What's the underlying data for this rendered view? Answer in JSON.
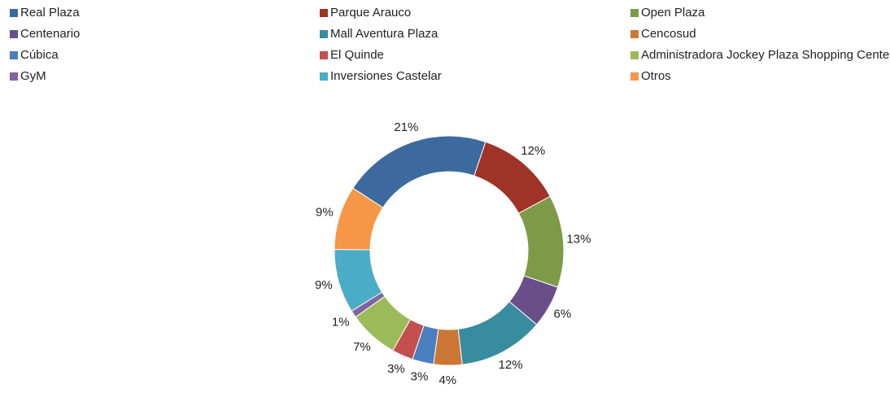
{
  "chart_data": {
    "type": "donut",
    "categories": [
      "Real Plaza",
      "Parque Arauco",
      "Open Plaza",
      "Centenario",
      "Mall Aventura Plaza",
      "Cencosud",
      "Cúbica",
      "El Quinde",
      "Administradora Jockey Plaza Shopping Center",
      "GyM",
      "Inversiones Castelar",
      "Otros"
    ],
    "values": [
      21,
      12,
      13,
      6,
      12,
      4,
      3,
      3,
      7,
      1,
      9,
      9
    ],
    "value_labels": [
      "21%",
      "12%",
      "13%",
      "6%",
      "12%",
      "4%",
      "3%",
      "3%",
      "7%",
      "1%",
      "9%",
      "9%"
    ],
    "colors": [
      "#3d6a9e",
      "#9e3326",
      "#7d9a48",
      "#6a4e89",
      "#388ca0",
      "#cc7636",
      "#4a7fc0",
      "#c3504d",
      "#9bbb59",
      "#8064a2",
      "#4aacc6",
      "#f79646"
    ],
    "legend": "top"
  }
}
